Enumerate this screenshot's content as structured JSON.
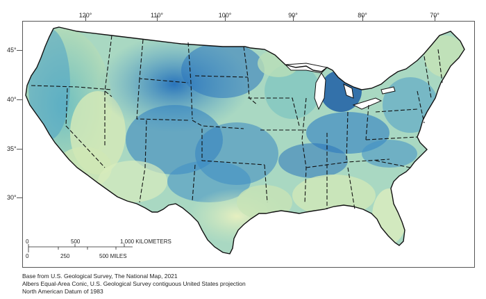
{
  "longitude_labels": [
    "120°",
    "110°",
    "100°",
    "90°",
    "80°",
    "70°"
  ],
  "latitude_labels": [
    "45°",
    "40°",
    "35°",
    "30°"
  ],
  "scale": {
    "km_ticks": [
      "0",
      "500",
      "1,000 KILOMETERS"
    ],
    "mile_ticks": [
      "0",
      "250",
      "500 MILES"
    ]
  },
  "credits": [
    "Base from U.S. Geological Survey, The National Map, 2021",
    "Albers Equal-Area Conic, U.S. Geological Survey contiguous United States projection",
    "North American Datum of 1983"
  ],
  "colors": {
    "low": "#e8f0c4",
    "mid": "#7cc5c0",
    "high": "#2f7fc1",
    "very_high": "#1f5fa6",
    "outline": "#111111"
  }
}
